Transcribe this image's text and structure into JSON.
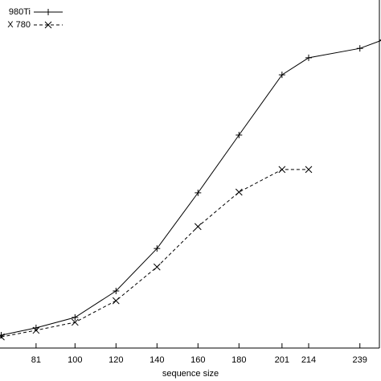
{
  "chart_data": {
    "type": "line",
    "xlabel": "sequence size",
    "xlim": [
      63.4,
      249.3
    ],
    "ylim": [
      0,
      100
    ],
    "xticks": [
      81,
      100,
      120,
      140,
      160,
      180,
      201,
      214,
      239
    ],
    "series": [
      {
        "name": "980Ti",
        "color": "#000000",
        "marker": "plus",
        "dashed": false,
        "x": [
          64,
          81,
          100,
          120,
          140,
          160,
          180,
          201,
          214,
          239,
          250
        ],
        "values": [
          3.7,
          5.8,
          8.8,
          16.4,
          28.6,
          44.6,
          61.2,
          78.5,
          83.4,
          86.1,
          88.5
        ]
      },
      {
        "name": "X 780",
        "color": "#000000",
        "marker": "cross",
        "dashed": true,
        "x": [
          64,
          81,
          100,
          120,
          140,
          160,
          180,
          201,
          214
        ],
        "values": [
          3.2,
          5.1,
          7.4,
          13.6,
          23.3,
          34.9,
          44.8,
          51.3,
          51.3
        ]
      }
    ]
  }
}
